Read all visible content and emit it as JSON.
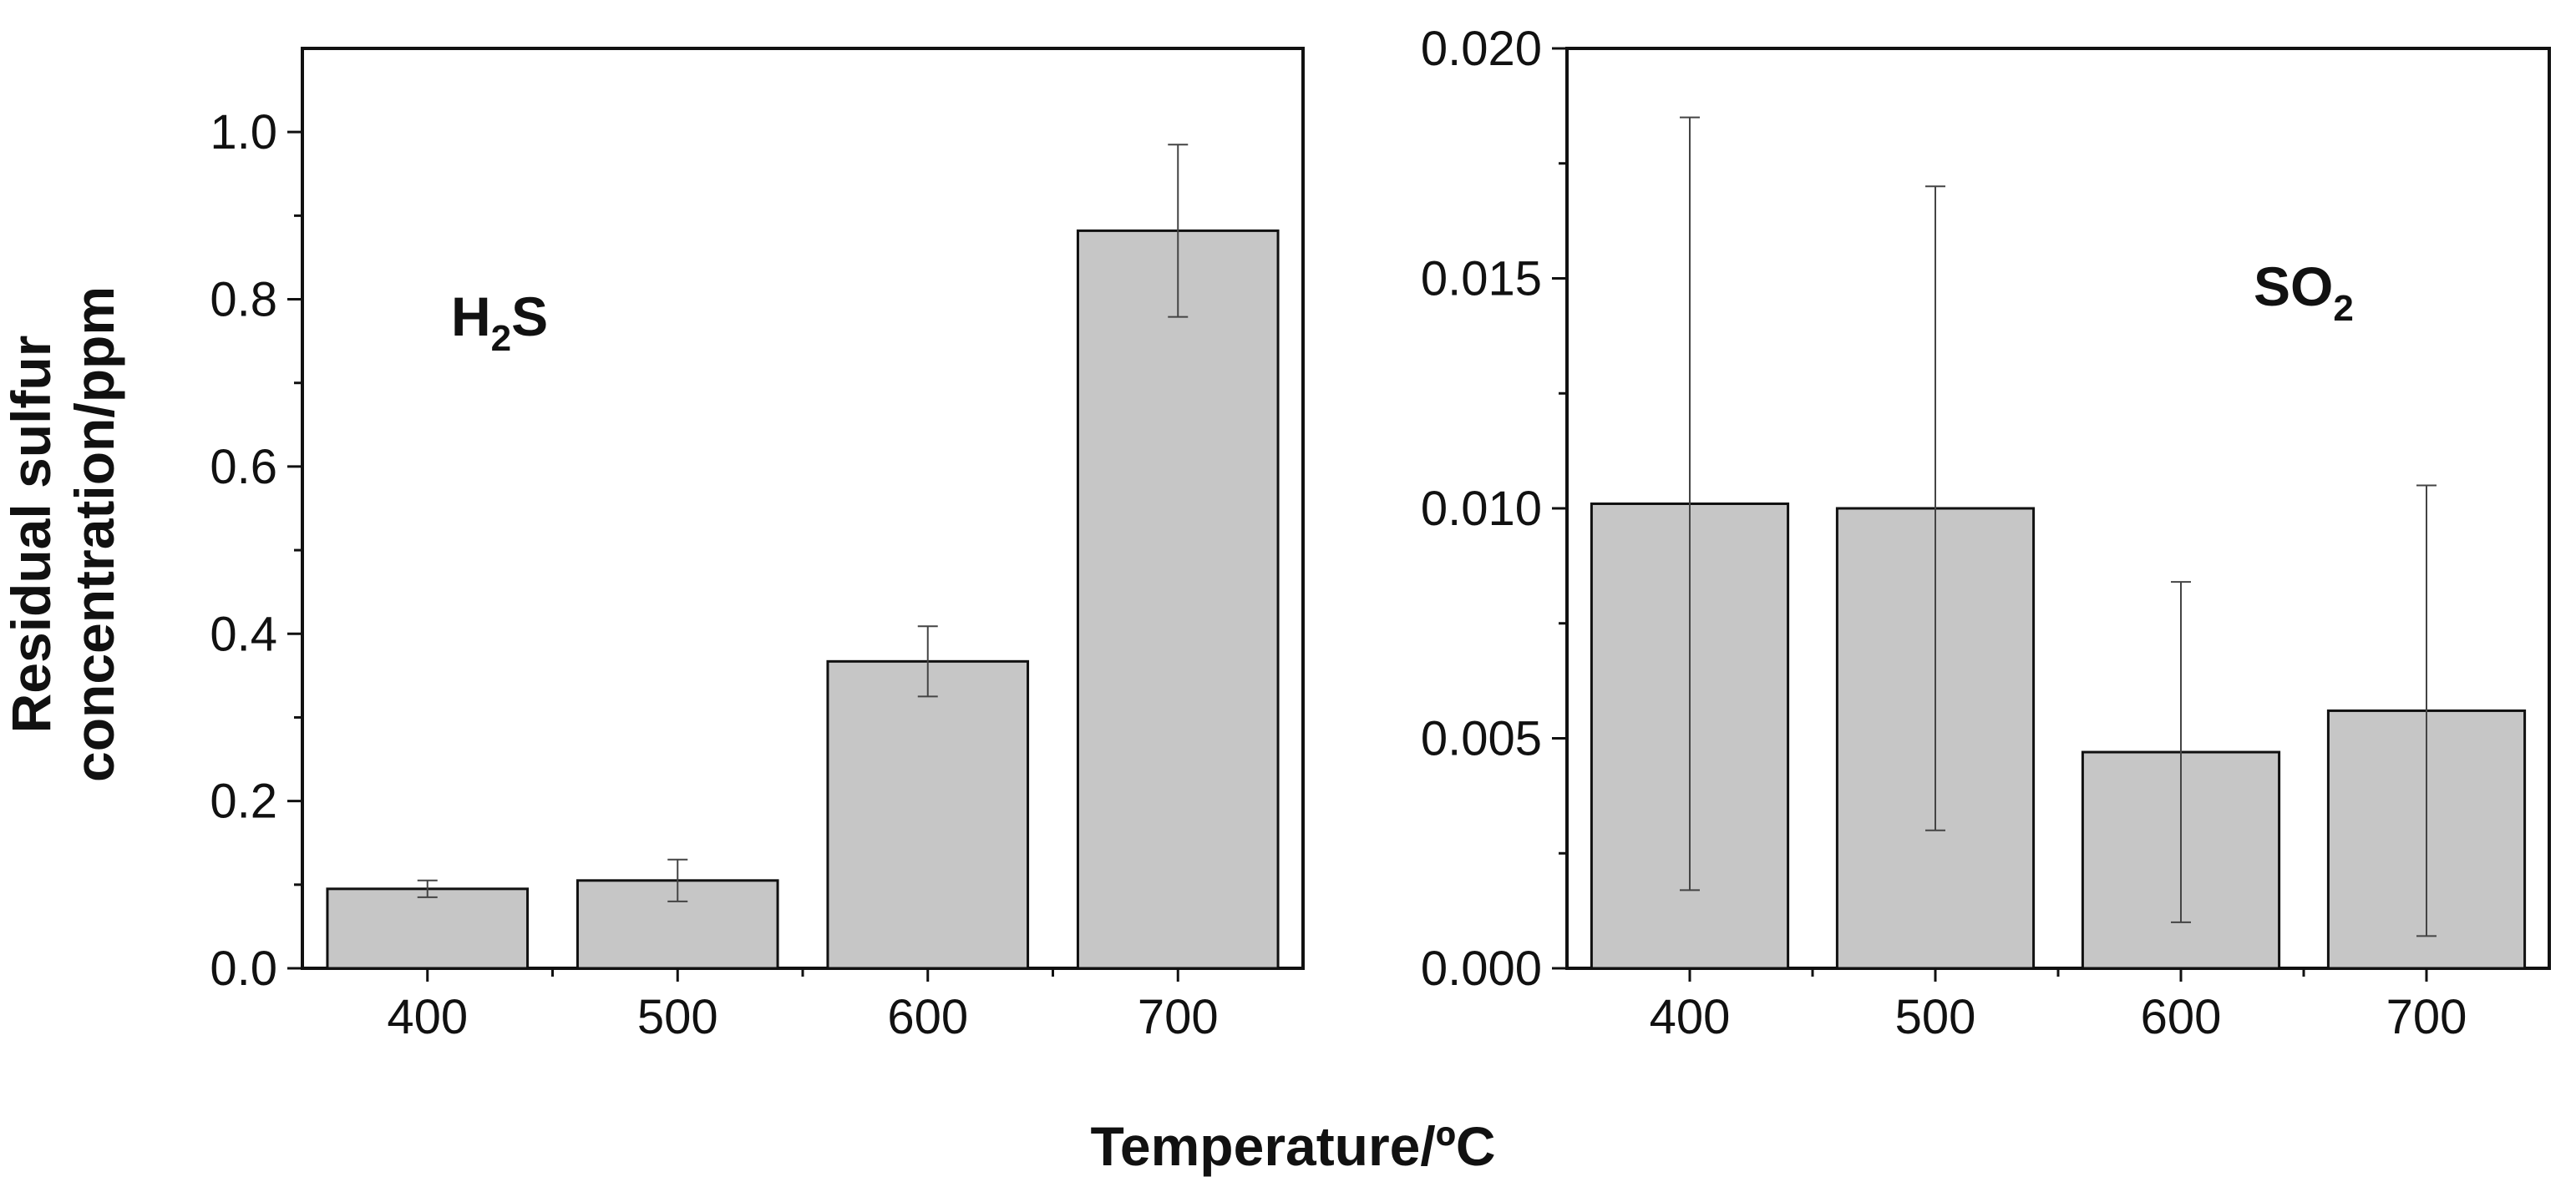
{
  "figure": {
    "shared_ylabel_line1": "Residual sulfur",
    "shared_ylabel_line2": "concentration/ppm",
    "shared_xlabel": "Temperature/ºC"
  },
  "colors": {
    "bar_fill": "#c6c6c6",
    "bar_stroke": "#111111",
    "axis": "#111111",
    "errorbar": "#444444"
  },
  "chart_data": [
    {
      "type": "bar",
      "panel_label_main": "H",
      "panel_label_sub": "2",
      "panel_label_tail": "S",
      "categories": [
        "400",
        "500",
        "600",
        "700"
      ],
      "values": [
        0.095,
        0.105,
        0.367,
        0.882
      ],
      "errors": [
        0.01,
        0.025,
        0.042,
        0.103
      ],
      "ylim": [
        0,
        1.1
      ],
      "yticks": [
        "0.0",
        "0.2",
        "0.4",
        "0.6",
        "0.8",
        "1.0"
      ],
      "ytick_values": [
        0,
        0.2,
        0.4,
        0.6,
        0.8,
        1.0
      ],
      "xlabel": "Temperature/ºC",
      "ylabel": "Residual sulfur concentration/ppm"
    },
    {
      "type": "bar",
      "panel_label_main": "SO",
      "panel_label_sub": "2",
      "panel_label_tail": "",
      "categories": [
        "400",
        "500",
        "600",
        "700"
      ],
      "values": [
        0.0101,
        0.01,
        0.0047,
        0.0056
      ],
      "errors": [
        0.0084,
        0.007,
        0.0037,
        0.0049
      ],
      "ylim": [
        0,
        0.02
      ],
      "yticks": [
        "0.000",
        "0.005",
        "0.010",
        "0.015",
        "0.020"
      ],
      "ytick_values": [
        0,
        0.005,
        0.01,
        0.015,
        0.02
      ],
      "xlabel": "Temperature/ºC",
      "ylabel": ""
    }
  ]
}
